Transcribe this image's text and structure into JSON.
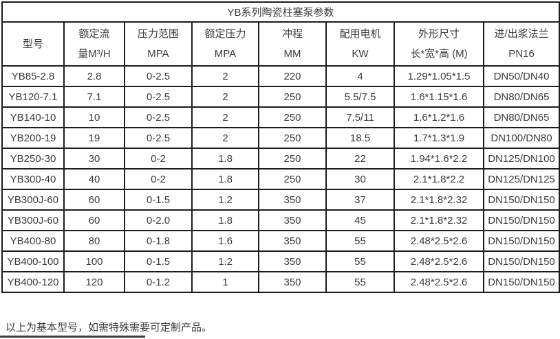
{
  "title": "YB系列陶瓷柱塞泵参数",
  "table": {
    "columns": [
      {
        "line1": "型号",
        "line2": ""
      },
      {
        "line1": "额定流",
        "line2": "量M³/H"
      },
      {
        "line1": "压力范围",
        "line2": "MPA"
      },
      {
        "line1": "额定压力",
        "line2": "MPA"
      },
      {
        "line1": "冲程",
        "line2": "MM"
      },
      {
        "line1": "配用电机",
        "line2": "KW"
      },
      {
        "line1": "外形尺寸",
        "line2": "长*宽*高 (M)"
      },
      {
        "line1": "进/出浆法兰",
        "line2": "PN16"
      }
    ],
    "rows": [
      [
        "YB85-2.8",
        "2.8",
        "0-2.5",
        "2",
        "220",
        "4",
        "1.29*1.05*1.5",
        "DN50/DN40"
      ],
      [
        "YB120-7.1",
        "7.1",
        "0-2.5",
        "2",
        "250",
        "5.5/7.5",
        "1.6*1.15*1.6",
        "DN80/DN65"
      ],
      [
        "YB140-10",
        "10",
        "0-2.5",
        "2",
        "250",
        "7.5/11",
        "1.6*1.2*1.6",
        "DN80/DN65"
      ],
      [
        "YB200-19",
        "19",
        "0-2.5",
        "2",
        "250",
        "18.5",
        "1.7*1.3*1.9",
        "DN100/DN80"
      ],
      [
        "YB250-30",
        "30",
        "0-2",
        "1.8",
        "250",
        "22",
        "1.94*1.6*2.2",
        "DN125/DN100"
      ],
      [
        "YB300-40",
        "40",
        "0-2",
        "1.8",
        "250",
        "30",
        "2.1*1.8*2.2",
        "DN125/DN125"
      ],
      [
        "YB300J-60",
        "60",
        "0-1.5",
        "1.2",
        "350",
        "37",
        "2.1*1.8*2.32",
        "DN150/DN150"
      ],
      [
        "YB300J-60",
        "60",
        "0-2.0",
        "1.8",
        "350",
        "45",
        "2.1*1.8*2.32",
        "DN150/DN150"
      ],
      [
        "YB400-80",
        "80",
        "0-1.8",
        "1.6",
        "350",
        "55",
        "2.48*2.5*2.6",
        "DN150/DN150"
      ],
      [
        "YB400-100",
        "100",
        "0-1.5",
        "1.2",
        "350",
        "55",
        "2.48*2.5*2.6",
        "DN150/DN150"
      ],
      [
        "YB400-120",
        "120",
        "0-1.2",
        "1",
        "350",
        "55",
        "2.48*2.5*2.6",
        "DN150/DN150"
      ]
    ]
  },
  "footer": "以上为基本型号，如需特殊需要可定制产品。",
  "colors": {
    "border": "#1c1c1c",
    "text": "#3b3b3b",
    "background": "#ffffff"
  }
}
